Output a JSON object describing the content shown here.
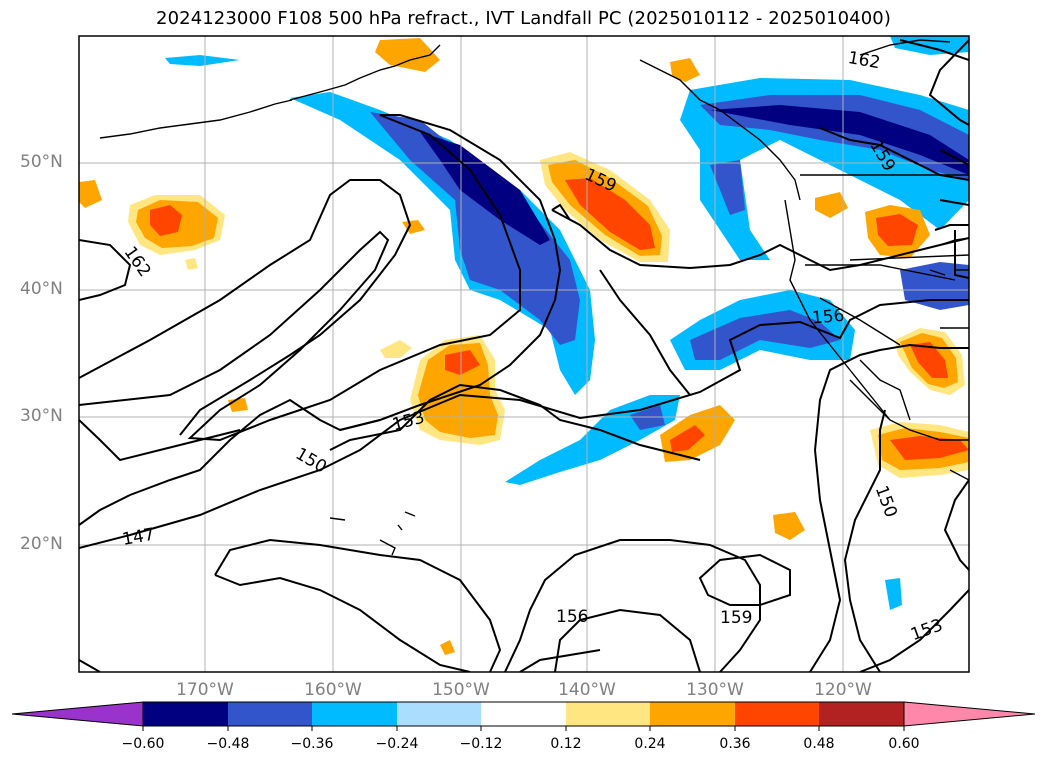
{
  "title": "2024123000 F108 500 hPa refract., IVT Landfall PC (2025010112 - 2025010400)",
  "map": {
    "lat_labels": [
      "50°N",
      "40°N",
      "30°N",
      "20°N"
    ],
    "lon_labels": [
      "170°W",
      "160°W",
      "150°W",
      "140°W",
      "130°W",
      "120°W"
    ],
    "contour_labels": [
      "162",
      "162",
      "159",
      "159",
      "156",
      "156",
      "153",
      "153",
      "150",
      "150",
      "147"
    ]
  },
  "colorbar": {
    "ticks": [
      "−0.60",
      "−0.48",
      "−0.36",
      "−0.24",
      "−0.12",
      "0.12",
      "0.24",
      "0.36",
      "0.48",
      "0.60"
    ],
    "colors": [
      "#9933cc",
      "#000080",
      "#3355cc",
      "#00bbff",
      "#aaddff",
      "#ffffff",
      "#ffe680",
      "#ffa500",
      "#ff4500",
      "#b22222",
      "#ff88aa"
    ]
  }
}
